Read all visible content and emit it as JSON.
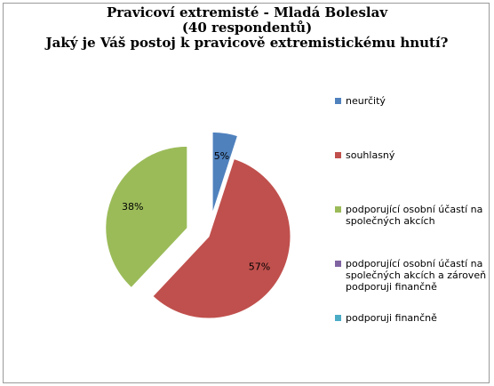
{
  "chart_data": {
    "type": "pie",
    "title_lines": [
      "Pravicoví extremisté - Mladá Boleslav",
      "(40 respondentů)",
      "Jaký je Váš postoj  k pravicově extremistickému hnutí?"
    ],
    "slices": [
      {
        "label": "neurčitý",
        "value": 5,
        "data_label": "5%",
        "color": "#4f81bd",
        "exploded": true
      },
      {
        "label": "souhlasný",
        "value": 57,
        "data_label": "57%",
        "color": "#c0504d",
        "exploded": false
      },
      {
        "label": "podporující osobní účastí na společných akcích",
        "value": 38,
        "data_label": "38%",
        "color": "#9bbb59",
        "exploded": true
      },
      {
        "label": "podporující osobní účastí na společných akcích a zároveň podporuji finančně",
        "value": 0,
        "data_label": "",
        "color": "#8064a2",
        "exploded": false
      },
      {
        "label": "podporuji finančně",
        "value": 0,
        "data_label": "",
        "color": "#4bacc6",
        "exploded": false
      }
    ],
    "legend_position": "right"
  }
}
